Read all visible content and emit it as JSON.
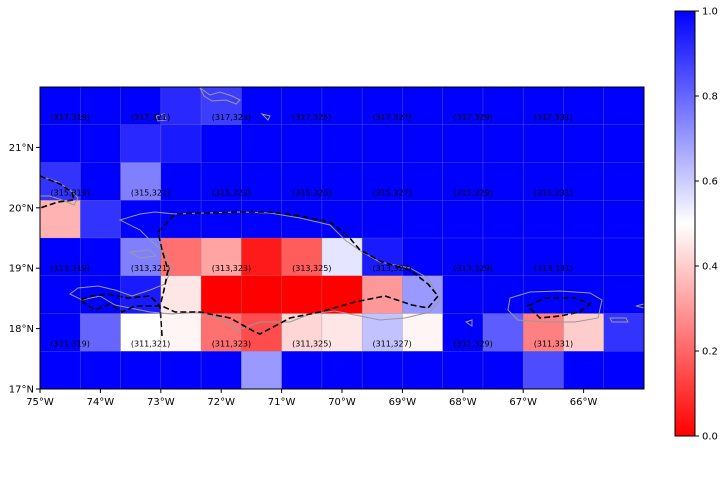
{
  "map": {
    "x_ticks": [
      "75°W",
      "74°W",
      "73°W",
      "72°W",
      "71°W",
      "70°W",
      "69°W",
      "68°W",
      "67°W",
      "66°W"
    ],
    "y_ticks": [
      "21°N",
      "20°N",
      "19°N",
      "18°N",
      "17°N"
    ],
    "lon_range": [
      -75,
      -65
    ],
    "lat_range": [
      17,
      22
    ],
    "grid_rows": [
      [
        1.0,
        1.0,
        1.0,
        0.92,
        0.88,
        1.0,
        1.0,
        1.0,
        1.0,
        1.0,
        1.0,
        1.0,
        1.0,
        1.0,
        1.0
      ],
      [
        1.0,
        1.0,
        0.92,
        0.95,
        1.0,
        1.0,
        1.0,
        1.0,
        1.0,
        1.0,
        1.0,
        1.0,
        1.0,
        1.0,
        1.0
      ],
      [
        0.9,
        1.0,
        0.75,
        1.0,
        1.0,
        1.0,
        1.0,
        1.0,
        1.0,
        1.0,
        1.0,
        1.0,
        1.0,
        1.0,
        1.0
      ],
      [
        0.35,
        0.9,
        1.0,
        1.0,
        1.0,
        1.0,
        1.0,
        1.0,
        1.0,
        1.0,
        1.0,
        1.0,
        1.0,
        1.0,
        1.0
      ],
      [
        1.0,
        1.0,
        0.75,
        0.22,
        0.32,
        0.05,
        0.18,
        0.55,
        0.95,
        1.0,
        1.0,
        1.0,
        1.0,
        1.0,
        1.0
      ],
      [
        1.0,
        1.0,
        0.95,
        0.45,
        0.0,
        0.0,
        0.0,
        0.0,
        0.3,
        0.7,
        1.0,
        1.0,
        1.0,
        1.0,
        1.0
      ],
      [
        1.0,
        0.8,
        0.5,
        0.48,
        0.22,
        0.15,
        0.42,
        0.45,
        0.62,
        0.48,
        1.0,
        0.82,
        0.25,
        0.4,
        0.9
      ],
      [
        1.0,
        1.0,
        1.0,
        1.0,
        1.0,
        0.7,
        1.0,
        1.0,
        1.0,
        1.0,
        1.0,
        1.0,
        0.85,
        1.0,
        1.0
      ]
    ],
    "cell_labels": [
      {
        "text": "(317,319)",
        "lon": -74.5,
        "lat": 21.5
      },
      {
        "text": "(317,321)",
        "lon": -73.17,
        "lat": 21.5
      },
      {
        "text": "(317,323)",
        "lon": -71.83,
        "lat": 21.5
      },
      {
        "text": "(317,325)",
        "lon": -70.5,
        "lat": 21.5
      },
      {
        "text": "(317,327)",
        "lon": -69.17,
        "lat": 21.5
      },
      {
        "text": "(317,329)",
        "lon": -67.83,
        "lat": 21.5
      },
      {
        "text": "(317,331)",
        "lon": -66.5,
        "lat": 21.5
      },
      {
        "text": "(315,319)",
        "lon": -74.5,
        "lat": 20.25
      },
      {
        "text": "(315,321)",
        "lon": -73.17,
        "lat": 20.25
      },
      {
        "text": "(315,323)",
        "lon": -71.83,
        "lat": 20.25
      },
      {
        "text": "(315,325)",
        "lon": -70.5,
        "lat": 20.25
      },
      {
        "text": "(315,327)",
        "lon": -69.17,
        "lat": 20.25
      },
      {
        "text": "(315,329)",
        "lon": -67.83,
        "lat": 20.25
      },
      {
        "text": "(315,331)",
        "lon": -66.5,
        "lat": 20.25
      },
      {
        "text": "(313,319)",
        "lon": -74.5,
        "lat": 19.0
      },
      {
        "text": "(313,321)",
        "lon": -73.17,
        "lat": 19.0
      },
      {
        "text": "(313,323)",
        "lon": -71.83,
        "lat": 19.0
      },
      {
        "text": "(313,325)",
        "lon": -70.5,
        "lat": 19.0
      },
      {
        "text": "(313,327)",
        "lon": -69.17,
        "lat": 19.0
      },
      {
        "text": "(313,329)",
        "lon": -67.83,
        "lat": 19.0
      },
      {
        "text": "(313,331)",
        "lon": -66.5,
        "lat": 19.0
      },
      {
        "text": "(311,319)",
        "lon": -74.5,
        "lat": 17.75
      },
      {
        "text": "(311,321)",
        "lon": -73.17,
        "lat": 17.75
      },
      {
        "text": "(311,323)",
        "lon": -71.83,
        "lat": 17.75
      },
      {
        "text": "(311,325)",
        "lon": -70.5,
        "lat": 17.75
      },
      {
        "text": "(311,327)",
        "lon": -69.17,
        "lat": 17.75
      },
      {
        "text": "(311,329)",
        "lon": -67.83,
        "lat": 17.75
      },
      {
        "text": "(311,331)",
        "lon": -66.5,
        "lat": 17.75
      }
    ],
    "colormap": {
      "low": "#ff0000",
      "mid": "#ffffff",
      "high": "#0000ff"
    },
    "grid_line_color": "#888888",
    "coastline_color": "#999999",
    "boundary_style": "dashed-black"
  },
  "colorbar": {
    "ticks": [
      "0.0",
      "0.2",
      "0.4",
      "0.6",
      "0.8",
      "1.0"
    ],
    "range": [
      0.0,
      1.0
    ]
  }
}
